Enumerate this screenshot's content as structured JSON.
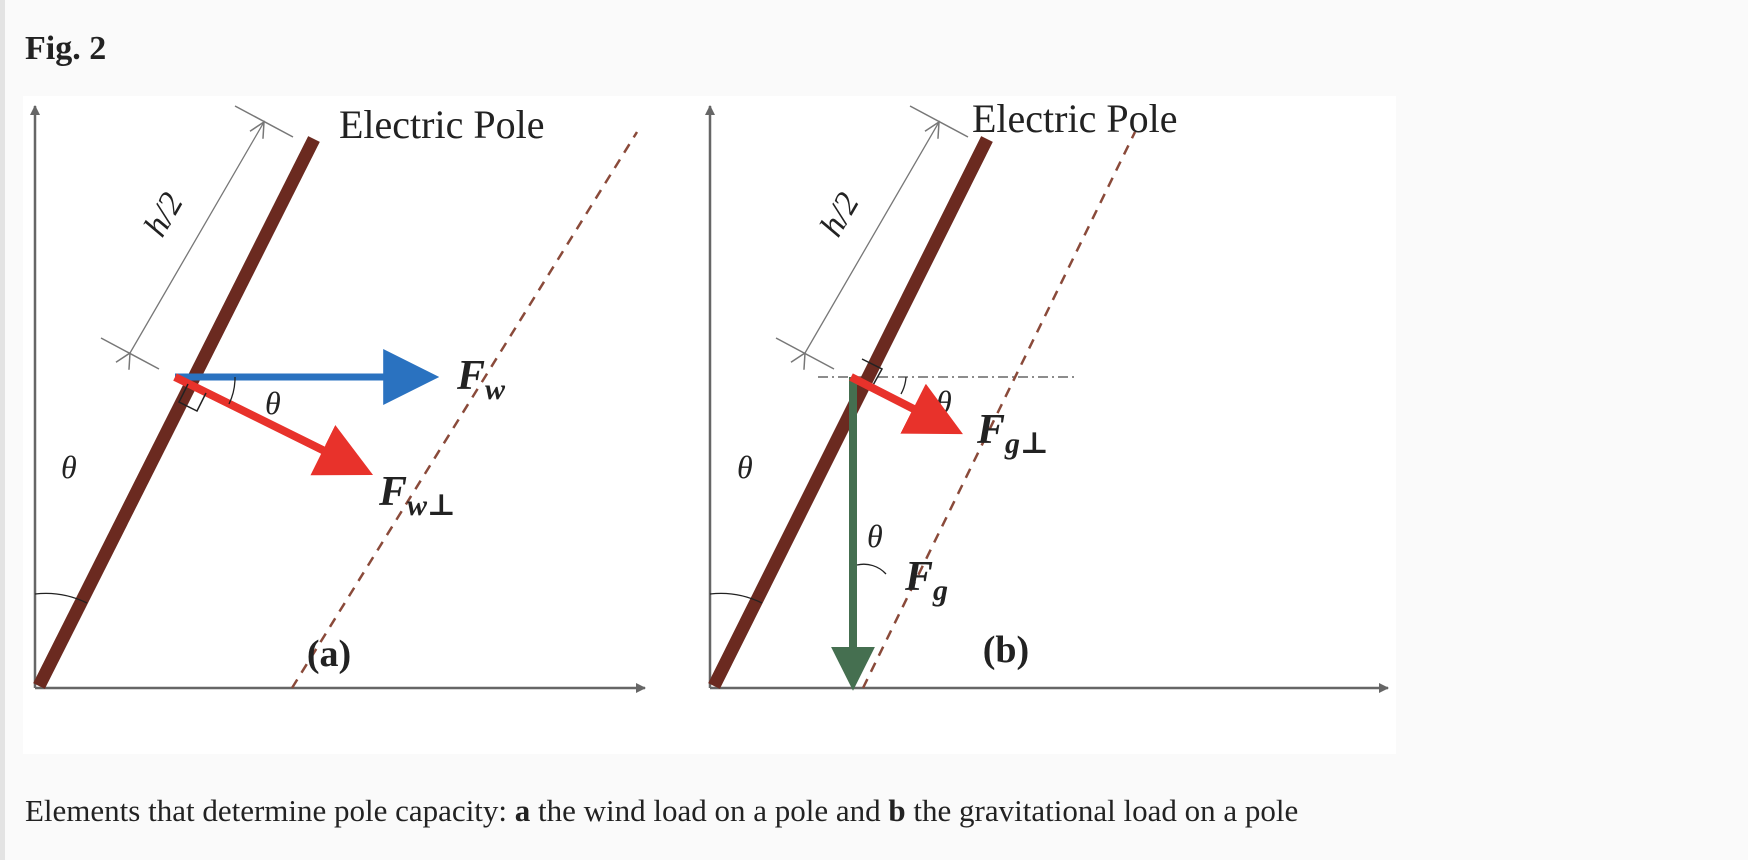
{
  "figure": {
    "label": "Fig. 2"
  },
  "panel_a": {
    "pole_label": "Electric Pole",
    "half_height_label": "h/2",
    "angle_label": "θ",
    "force_main": "F",
    "force_main_sub": "w",
    "force_perp": "F",
    "force_perp_sub": "w⊥",
    "sublabel": "(a)"
  },
  "panel_b": {
    "pole_label": "Electric Pole",
    "half_height_label": "h/2",
    "angle_label": "θ",
    "force_main": "F",
    "force_main_sub": "g",
    "force_perp": "F",
    "force_perp_sub": "g⊥",
    "sublabel": "(b)"
  },
  "caption": {
    "prefix": "Elements that determine pole capacity: ",
    "a_marker": "a",
    "a_text": " the wind load on a pole and ",
    "b_marker": "b",
    "b_text": " the gravitational load on a pole"
  },
  "colors": {
    "pole": "#6b2a20",
    "wind_force": "#2a72c0",
    "perp_force": "#e8322b",
    "gravity_force": "#456f50",
    "axis": "#666666",
    "dashed_line": "#8a4a3a"
  }
}
